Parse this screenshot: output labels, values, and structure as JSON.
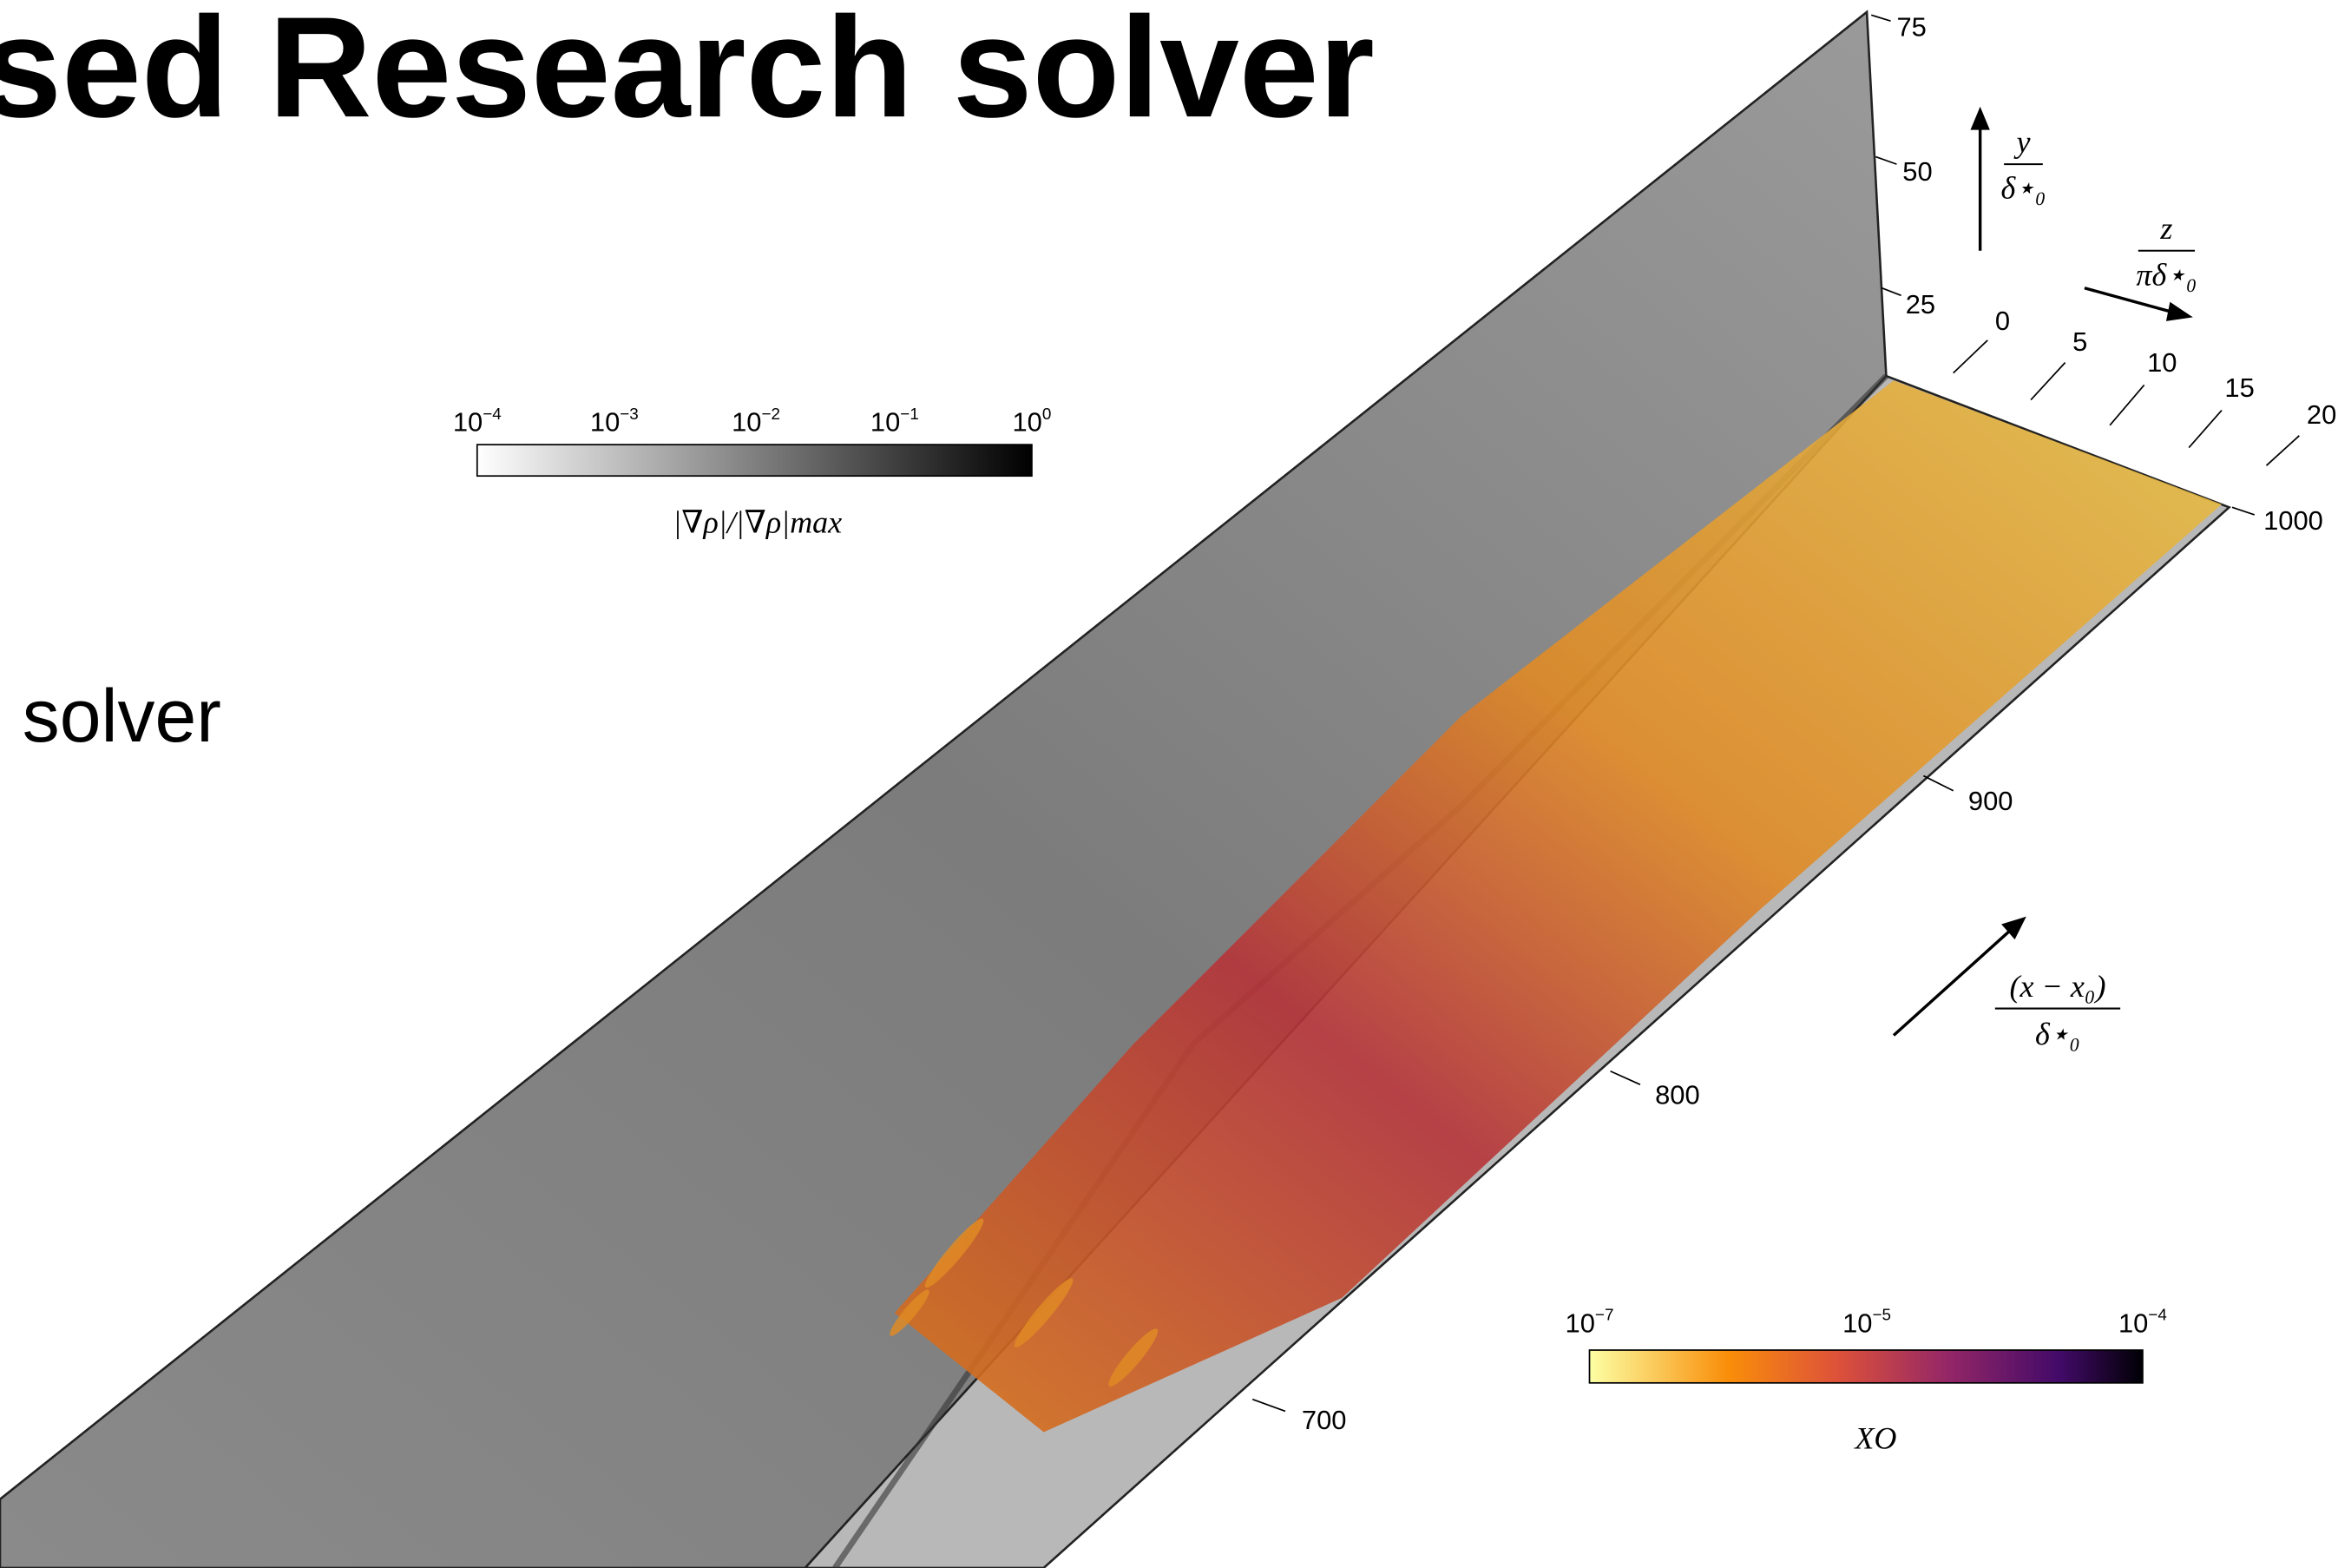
{
  "slide": {
    "title": "sed Research solver",
    "body_text": "solver"
  },
  "figure": {
    "y_axis": {
      "ticks": [
        "75",
        "50",
        "25"
      ],
      "label": {
        "numerator": "y",
        "denominator": "δ⋆₀"
      }
    },
    "z_axis": {
      "ticks": [
        "0",
        "5",
        "10",
        "15",
        "20"
      ],
      "label": {
        "numerator": "z",
        "denominator": "πδ⋆₀"
      }
    },
    "x_axis": {
      "ticks": [
        "1000",
        "900",
        "800",
        "700"
      ],
      "label": {
        "numerator": "(x − x₀)",
        "denominator": "δ⋆₀"
      }
    },
    "gradient_colorbar": {
      "ticks": [
        {
          "base": "10",
          "exponent": "−4"
        },
        {
          "base": "10",
          "exponent": "−3"
        },
        {
          "base": "10",
          "exponent": "−2"
        },
        {
          "base": "10",
          "exponent": "−1"
        },
        {
          "base": "10",
          "exponent": "0"
        }
      ],
      "label": "|∇ρ|/|∇ρ|max"
    },
    "species_colorbar": {
      "ticks": [
        {
          "base": "10",
          "exponent": "−7"
        },
        {
          "base": "10",
          "exponent": "−5"
        },
        {
          "base": "10",
          "exponent": "−4"
        }
      ],
      "label": "XO"
    }
  }
}
